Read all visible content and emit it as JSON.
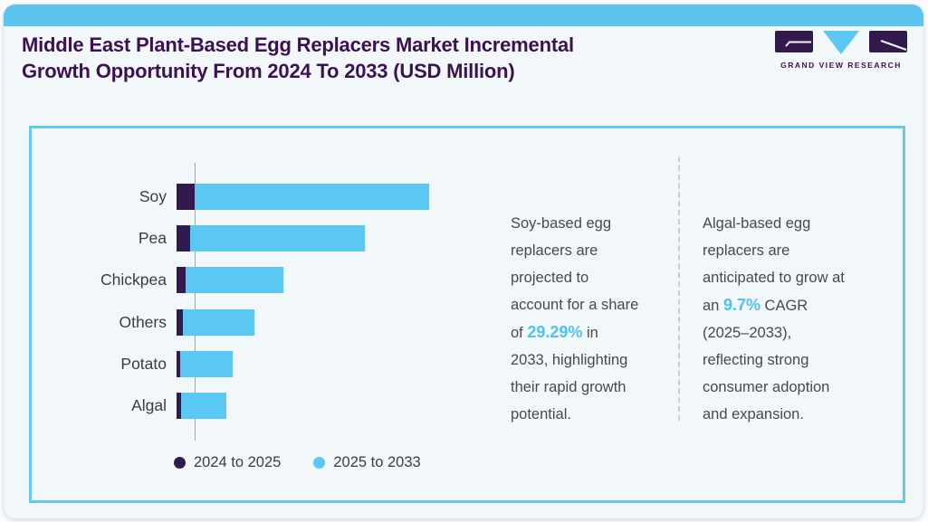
{
  "header": {
    "title": "Middle East Plant-Based Egg Replacers Market Incremental\nGrowth Opportunity From 2024 To 2033 (USD Million)",
    "logo_text": "GRAND VIEW RESEARCH"
  },
  "colors": {
    "accent_blue": "#5bc7f3",
    "dark_purple": "#321a4e",
    "title_purple": "#3c1152",
    "card_border": "#62c9f2",
    "topbar_blue": "#5ac4ec",
    "page_bg": "#f2f7fa",
    "body_text": "#4a4754",
    "highlight_blue": "#4ec3f2"
  },
  "chart_data": {
    "type": "bar",
    "orientation": "horizontal",
    "title": "Middle East Plant-Based Egg Replacers Market Incremental Growth Opportunity From 2024 To 2033 (USD Million)",
    "categories": [
      "Soy",
      "Pea",
      "Chickpea",
      "Others",
      "Potato",
      "Algal"
    ],
    "series": [
      {
        "name": "2024 to 2025",
        "color": "#321a4e",
        "values": [
          20,
          15,
          10,
          7,
          4,
          5
        ]
      },
      {
        "name": "2025 to 2033",
        "color": "#5bc7f3",
        "values": [
          259,
          193,
          108,
          79,
          58,
          50
        ]
      }
    ],
    "units_note": "Value axis unlabeled in source; segment values are relative estimates of bar length (USD Million implied by title)",
    "legend_position": "bottom",
    "grid": false
  },
  "insights": {
    "soy": {
      "before": "Soy-based egg\nreplacers are\nprojected to\naccount for a share\nof ",
      "highlight": "29.29%",
      "after": " in\n2033, highlighting\ntheir rapid growth\npotential."
    },
    "algal": {
      "before": "Algal-based egg\nreplacers are\nanticipated to grow at\nan ",
      "highlight": "9.7%",
      "after": " CAGR\n(2025–2033),\nreflecting strong\nconsumer adoption\nand expansion."
    }
  }
}
